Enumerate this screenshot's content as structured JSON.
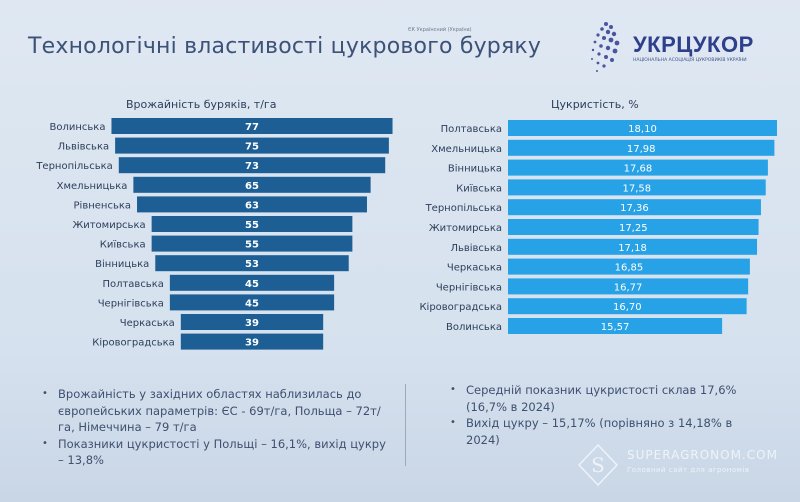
{
  "slide": {
    "title": "Технологічні властивості цукрового буряку",
    "note": "ЄК Українсний (Україна)",
    "logo": {
      "name": "УКРЦУКОР",
      "subtitle": "НАЦІОНАЛЬНА АСОЦІАЦІЯ ЦУКРОВИКІВ УКРАЇНИ"
    }
  },
  "chart_data": [
    {
      "type": "bar",
      "orientation": "horizontal-funnel",
      "title": "Врожайність буряків, т/га",
      "categories": [
        "Волинська",
        "Львівська",
        "Тернопільська",
        "Хмельницька",
        "Рівненська",
        "Житомирська",
        "Київська",
        "Вінницька",
        "Полтавська",
        "Чернігівська",
        "Черкаська",
        "Кіровоградська"
      ],
      "values": [
        77,
        75,
        73,
        65,
        63,
        55,
        55,
        53,
        45,
        45,
        39,
        39
      ],
      "labels": [
        "77",
        "75",
        "73",
        "65",
        "63",
        "55",
        "55",
        "53",
        "45",
        "45",
        "39",
        "39"
      ],
      "color": "#1d5e95"
    },
    {
      "type": "bar",
      "orientation": "horizontal",
      "title": "Цукристість, %",
      "categories": [
        "Полтавська",
        "Хмельницька",
        "Вінницька",
        "Київська",
        "Тернопільська",
        "Житомирська",
        "Львівська",
        "Черкаська",
        "Чернігівська",
        "Кіровоградська",
        "Волинська"
      ],
      "values": [
        18.1,
        17.98,
        17.68,
        17.58,
        17.36,
        17.25,
        17.18,
        16.85,
        16.77,
        16.7,
        15.57
      ],
      "labels": [
        "18,10",
        "17,98",
        "17,68",
        "17,58",
        "17,36",
        "17,25",
        "17,18",
        "16,85",
        "16,77",
        "16,70",
        "15,57"
      ],
      "color": "#27a2e6"
    }
  ],
  "notes": {
    "left": [
      "Врожайність у західних областях наблизилась до європейських параметрів: ЄС  - 69т/га, Польща – 72т/га, Німеччина – 79 т/га",
      "Показники цукристості у Польщі – 16,1%, вихід цукру – 13,8%"
    ],
    "right": [
      "Середній показник цукристості склав 17,6% (16,7% в 2024)",
      "Вихід цукру – 15,17% (порівняно з 14,18% в 2024)"
    ]
  },
  "watermark": {
    "title": "SUPERAGRONOM.COM",
    "subtitle": "Головний сайт для агрономів"
  }
}
